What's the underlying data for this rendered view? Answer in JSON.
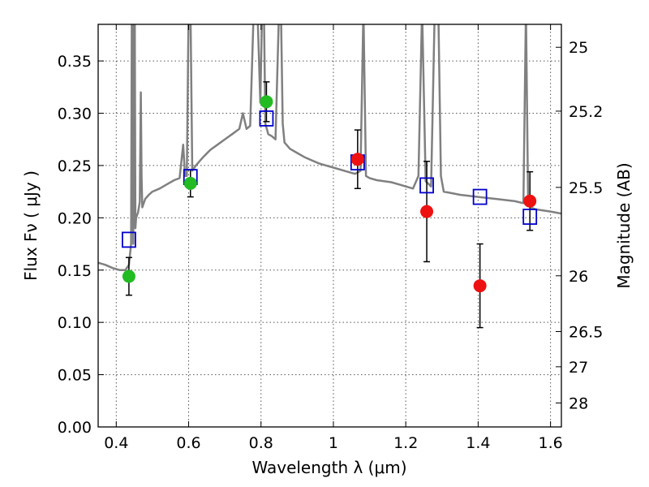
{
  "chart_data": {
    "type": "scatter",
    "xlabel": "Wavelength  λ (μm)",
    "ylabel_left": "Flux  Fν  ( μJy )",
    "ylabel_right": "Magnitude (AB)",
    "xlim": [
      0.35,
      1.63
    ],
    "ylim": [
      0.0,
      0.385
    ],
    "grid": true,
    "x_ticks": [
      0.4,
      0.6,
      0.8,
      1.0,
      1.2,
      1.4,
      1.6
    ],
    "x_tick_labels": [
      "0.4",
      "0.6",
      "0.8",
      "1",
      "1.2",
      "1.4",
      "1.6"
    ],
    "y_ticks": [
      0.0,
      0.05,
      0.1,
      0.15,
      0.2,
      0.25,
      0.3,
      0.35
    ],
    "y_tick_labels": [
      "0.00",
      "0.05",
      "0.10",
      "0.15",
      "0.20",
      "0.25",
      "0.30",
      "0.35"
    ],
    "right_ticks": [
      {
        "label": "25",
        "mag": 25.0
      },
      {
        "label": "25.2",
        "mag": 25.2
      },
      {
        "label": "25.5",
        "mag": 25.5
      },
      {
        "label": "26",
        "mag": 26.0
      },
      {
        "label": "26.5",
        "mag": 26.5
      },
      {
        "label": "27",
        "mag": 27.0
      },
      {
        "label": "28",
        "mag": 28.0
      }
    ],
    "colors": {
      "spectrum": "#808080",
      "model_squares": "#0000cc",
      "green_points": "#22bb22",
      "red_points": "#ee1111",
      "errorbar": "#000000",
      "grid": "#555555"
    },
    "series": [
      {
        "kind": "spectrum",
        "x": [
          0.35,
          0.37,
          0.39,
          0.41,
          0.425,
          0.435,
          0.441,
          0.443,
          0.445,
          0.447,
          0.449,
          0.451,
          0.453,
          0.455,
          0.46,
          0.465,
          0.468,
          0.47,
          0.472,
          0.48,
          0.49,
          0.5,
          0.52,
          0.54,
          0.56,
          0.575,
          0.585,
          0.59,
          0.595,
          0.6,
          0.605,
          0.61,
          0.62,
          0.64,
          0.66,
          0.68,
          0.7,
          0.72,
          0.74,
          0.75,
          0.76,
          0.77,
          0.78,
          0.79,
          0.798,
          0.803,
          0.808,
          0.812,
          0.82,
          0.83,
          0.84,
          0.85,
          0.855,
          0.86,
          0.865,
          0.87,
          0.88,
          0.9,
          0.92,
          0.94,
          0.96,
          0.98,
          1.0,
          1.02,
          1.04,
          1.06,
          1.075,
          1.083,
          1.09,
          1.1,
          1.12,
          1.14,
          1.16,
          1.18,
          1.2,
          1.22,
          1.235,
          1.245,
          1.255,
          1.27,
          1.28,
          1.29,
          1.297,
          1.305,
          1.32,
          1.35,
          1.4,
          1.45,
          1.5,
          1.525,
          1.532,
          1.538,
          1.545,
          1.56,
          1.6,
          1.63
        ],
        "y": [
          0.157,
          0.155,
          0.152,
          0.15,
          0.15,
          0.155,
          0.175,
          0.4,
          0.4,
          0.175,
          0.4,
          0.4,
          0.19,
          0.2,
          0.205,
          0.215,
          0.32,
          0.24,
          0.21,
          0.218,
          0.222,
          0.225,
          0.228,
          0.232,
          0.236,
          0.238,
          0.27,
          0.24,
          0.24,
          0.4,
          0.4,
          0.245,
          0.25,
          0.258,
          0.265,
          0.27,
          0.275,
          0.28,
          0.285,
          0.3,
          0.285,
          0.288,
          0.4,
          0.4,
          0.31,
          0.4,
          0.4,
          0.29,
          0.28,
          0.278,
          0.275,
          0.4,
          0.4,
          0.29,
          0.272,
          0.27,
          0.266,
          0.262,
          0.258,
          0.255,
          0.252,
          0.25,
          0.248,
          0.246,
          0.244,
          0.242,
          0.245,
          0.4,
          0.24,
          0.238,
          0.236,
          0.235,
          0.234,
          0.232,
          0.23,
          0.228,
          0.24,
          0.4,
          0.235,
          0.23,
          0.4,
          0.4,
          0.24,
          0.225,
          0.224,
          0.222,
          0.22,
          0.218,
          0.216,
          0.214,
          0.4,
          0.215,
          0.21,
          0.208,
          0.206,
          0.204
        ]
      },
      {
        "kind": "model-squares",
        "x": [
          0.435,
          0.605,
          0.815,
          1.067,
          1.258,
          1.405,
          1.543
        ],
        "y": [
          0.179,
          0.239,
          0.295,
          0.253,
          0.231,
          0.22,
          0.201
        ]
      },
      {
        "kind": "observed-green",
        "x": [
          0.435,
          0.605,
          0.815
        ],
        "y": [
          0.144,
          0.233,
          0.311
        ],
        "err": [
          0.018,
          0.013,
          0.019
        ]
      },
      {
        "kind": "observed-red",
        "x": [
          1.067,
          1.258,
          1.405,
          1.543
        ],
        "y": [
          0.256,
          0.206,
          0.135,
          0.216
        ],
        "err": [
          0.028,
          0.048,
          0.04,
          0.028
        ]
      }
    ]
  }
}
